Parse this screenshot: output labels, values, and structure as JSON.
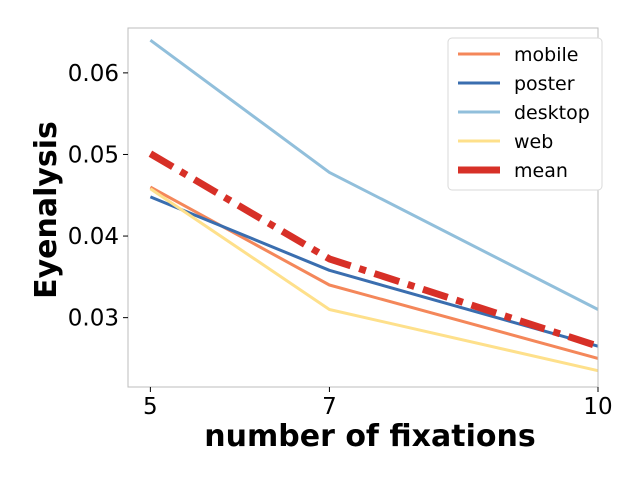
{
  "chart_data": {
    "type": "line",
    "title": "",
    "xlabel": "number of fixations",
    "ylabel": "Eyenalysis",
    "x": [
      5,
      7,
      10
    ],
    "xlim": [
      4.75,
      10.0
    ],
    "ylim": [
      0.0215,
      0.0655
    ],
    "xticks": [
      5,
      7,
      10
    ],
    "yticks": [
      0.03,
      0.04,
      0.05,
      0.06
    ],
    "ytick_labels": [
      "0.03",
      "0.04",
      "0.05",
      "0.06"
    ],
    "grid": false,
    "legend_position": "top-right",
    "series": [
      {
        "name": "mobile",
        "values": [
          0.046,
          0.034,
          0.025
        ],
        "color": "#f4875a",
        "style": "solid"
      },
      {
        "name": "poster",
        "values": [
          0.0448,
          0.0358,
          0.0265
        ],
        "color": "#3a6eaf",
        "style": "solid"
      },
      {
        "name": "desktop",
        "values": [
          0.064,
          0.0478,
          0.031
        ],
        "color": "#91bfdb",
        "style": "solid"
      },
      {
        "name": "web",
        "values": [
          0.0458,
          0.031,
          0.0235
        ],
        "color": "#fee08b",
        "style": "solid"
      },
      {
        "name": "mean",
        "values": [
          0.0501,
          0.0372,
          0.0265
        ],
        "color": "#d73027",
        "style": "dashdot"
      }
    ]
  }
}
